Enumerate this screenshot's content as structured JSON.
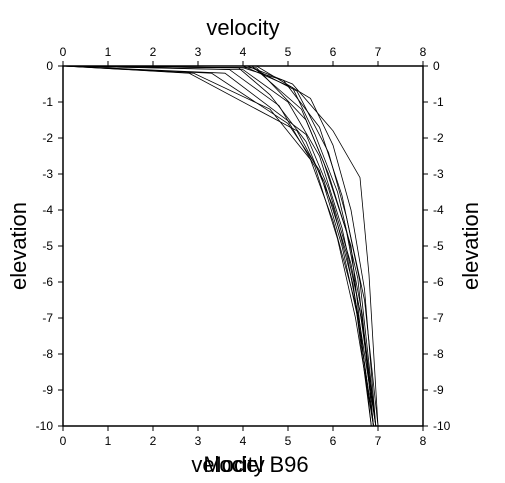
{
  "chart_data": {
    "type": "line",
    "title": "velocity",
    "xlabel_bottom_1": "velocity",
    "xlabel_bottom_2": "Model B96",
    "ylabel_left": "elevation",
    "ylabel_right": "elevation",
    "xlim": [
      0,
      8
    ],
    "ylim": [
      -10,
      0
    ],
    "x_ticks": [
      "0",
      "1",
      "2",
      "3",
      "4",
      "5",
      "6",
      "7",
      "8"
    ],
    "y_ticks": [
      "0",
      "-1",
      "-2",
      "-3",
      "-4",
      "-5",
      "-6",
      "-7",
      "-8",
      "-9",
      "-10"
    ],
    "grid": false,
    "line_color": "#000000",
    "series": [
      {
        "points": [
          [
            0,
            0
          ],
          [
            2.8,
            -0.2
          ],
          [
            5.2,
            -1.8
          ],
          [
            5.8,
            -3.2
          ],
          [
            6.3,
            -5.2
          ],
          [
            6.6,
            -7.2
          ],
          [
            6.85,
            -10
          ]
        ]
      },
      {
        "points": [
          [
            0,
            0
          ],
          [
            3.3,
            -0.2
          ],
          [
            5.0,
            -1.6
          ],
          [
            5.7,
            -2.9
          ],
          [
            6.2,
            -5.0
          ],
          [
            6.55,
            -7.0
          ],
          [
            6.9,
            -10
          ]
        ]
      },
      {
        "points": [
          [
            0,
            0
          ],
          [
            3.6,
            -0.2
          ],
          [
            5.4,
            -1.9
          ],
          [
            5.9,
            -3.4
          ],
          [
            6.4,
            -5.5
          ],
          [
            6.7,
            -7.5
          ],
          [
            6.95,
            -10
          ]
        ]
      },
      {
        "points": [
          [
            0,
            0
          ],
          [
            2.9,
            -0.2
          ],
          [
            4.6,
            -1.2
          ],
          [
            5.5,
            -2.6
          ],
          [
            6.0,
            -4.3
          ],
          [
            6.5,
            -6.6
          ],
          [
            6.85,
            -10
          ]
        ]
      },
      {
        "points": [
          [
            0,
            0
          ],
          [
            3.9,
            -0.05
          ],
          [
            4.6,
            -0.8
          ],
          [
            5.4,
            -2.1
          ],
          [
            6.0,
            -3.9
          ],
          [
            6.45,
            -6.1
          ],
          [
            6.9,
            -10
          ]
        ]
      },
      {
        "points": [
          [
            0,
            0
          ],
          [
            4.0,
            -0.1
          ],
          [
            5.0,
            -1.0
          ],
          [
            5.7,
            -2.5
          ],
          [
            6.2,
            -4.5
          ],
          [
            6.6,
            -6.8
          ],
          [
            6.95,
            -10
          ]
        ]
      },
      {
        "points": [
          [
            0,
            0
          ],
          [
            4.2,
            -0.05
          ],
          [
            5.2,
            -0.7
          ],
          [
            5.9,
            -2.4
          ],
          [
            6.3,
            -4.2
          ],
          [
            6.7,
            -6.5
          ],
          [
            7.0,
            -10
          ]
        ]
      },
      {
        "points": [
          [
            0,
            0
          ],
          [
            4.3,
            0
          ],
          [
            5.5,
            -0.9
          ],
          [
            6.0,
            -2.2
          ],
          [
            6.4,
            -4.0
          ],
          [
            6.7,
            -6.2
          ],
          [
            6.95,
            -10
          ]
        ]
      },
      {
        "points": [
          [
            0,
            0
          ],
          [
            4.1,
            0
          ],
          [
            5.1,
            -0.5
          ],
          [
            6.0,
            -1.8
          ],
          [
            6.6,
            -3.1
          ],
          [
            6.8,
            -5.8
          ],
          [
            7.0,
            -10
          ]
        ]
      },
      {
        "points": [
          [
            0,
            0
          ],
          [
            4.0,
            0
          ],
          [
            5.1,
            -0.6
          ],
          [
            5.6,
            -1.9
          ],
          [
            6.1,
            -3.5
          ],
          [
            6.55,
            -5.9
          ],
          [
            6.9,
            -10
          ]
        ]
      },
      {
        "points": [
          [
            0,
            0
          ],
          [
            3.7,
            -0.1
          ],
          [
            4.8,
            -1.1
          ],
          [
            5.6,
            -2.8
          ],
          [
            6.1,
            -4.8
          ],
          [
            6.5,
            -7.0
          ],
          [
            6.9,
            -10
          ]
        ]
      },
      {
        "points": [
          [
            0,
            0
          ],
          [
            4.2,
            0
          ],
          [
            5.3,
            -1.2
          ],
          [
            5.9,
            -3.0
          ],
          [
            6.4,
            -5.0
          ],
          [
            6.6,
            -7.2
          ],
          [
            6.95,
            -10
          ]
        ]
      },
      {
        "points": [
          [
            0,
            0
          ],
          [
            4.0,
            -0.05
          ],
          [
            4.9,
            -0.4
          ],
          [
            5.7,
            -1.7
          ],
          [
            6.2,
            -3.6
          ],
          [
            6.6,
            -6.0
          ],
          [
            6.95,
            -10
          ]
        ]
      },
      {
        "points": [
          [
            0,
            0
          ],
          [
            4.3,
            -0.05
          ],
          [
            5.4,
            -1.5
          ],
          [
            5.8,
            -2.7
          ],
          [
            6.3,
            -4.6
          ],
          [
            6.65,
            -6.9
          ],
          [
            6.9,
            -10
          ]
        ]
      }
    ]
  }
}
